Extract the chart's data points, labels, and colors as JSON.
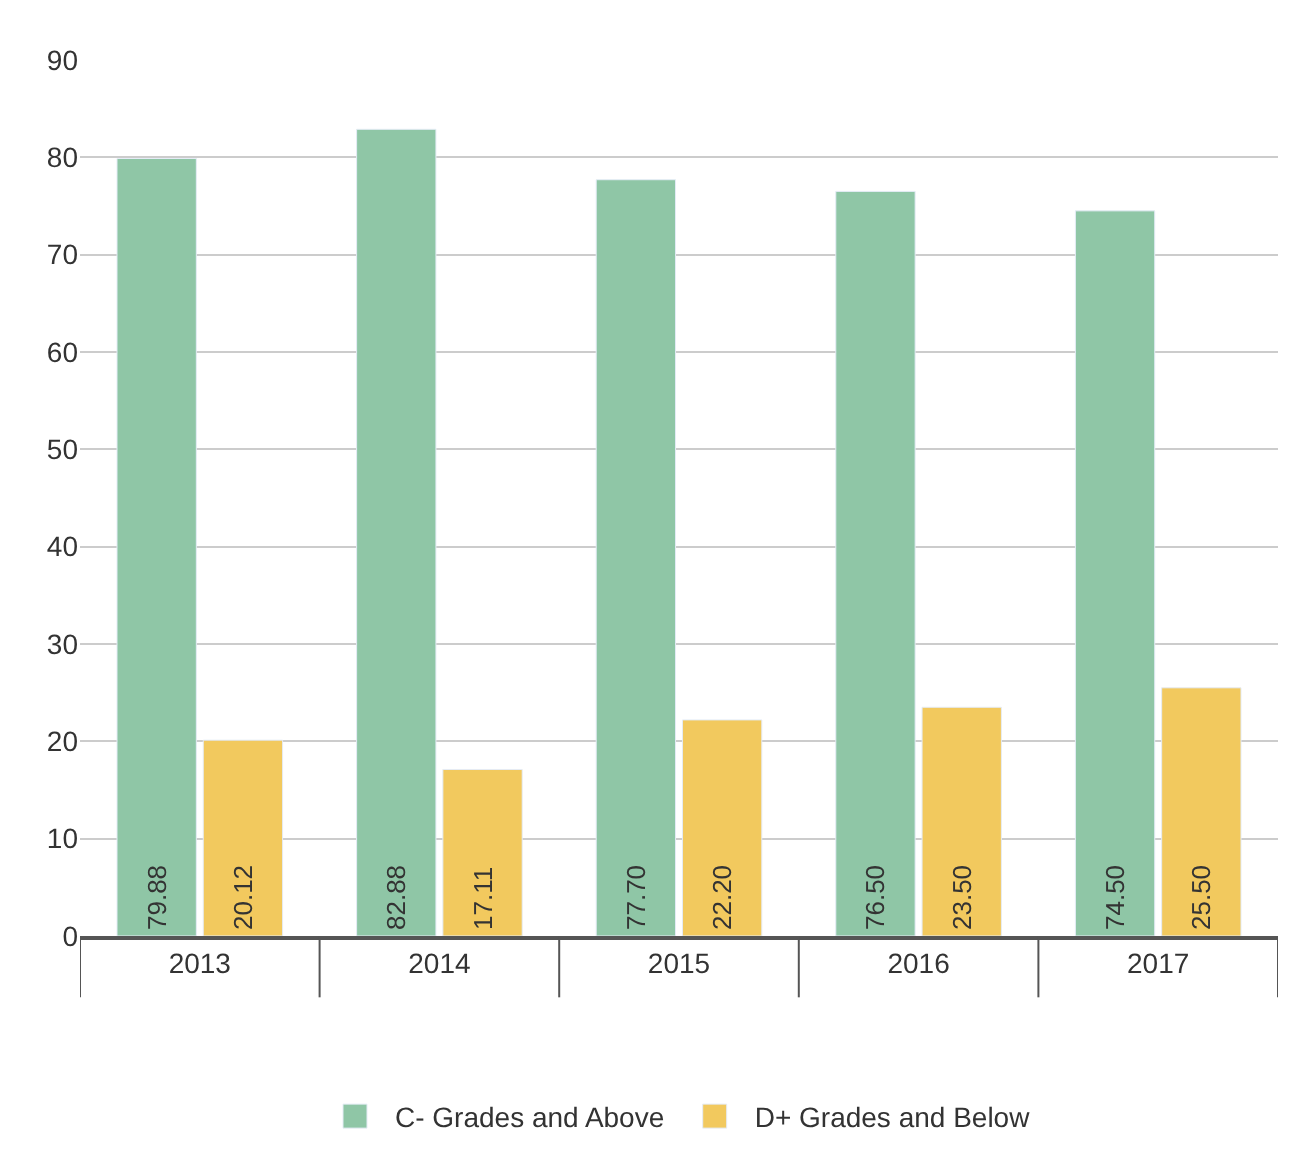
{
  "chart_data": {
    "type": "bar",
    "categories": [
      "2013",
      "2014",
      "2015",
      "2016",
      "2017"
    ],
    "series": [
      {
        "name": "C- Grades and Above",
        "color": "#8fc6a6",
        "values": [
          79.88,
          82.88,
          77.7,
          76.5,
          74.5
        ],
        "value_labels": [
          "79.88",
          "82.88",
          "77.70",
          "76.50",
          "74.50"
        ]
      },
      {
        "name": "D+ Grades and Below",
        "color": "#f2c95e",
        "values": [
          20.12,
          17.11,
          22.2,
          23.5,
          25.5
        ],
        "value_labels": [
          "20.12",
          "17.11",
          "22.20",
          "23.50",
          "25.50"
        ]
      }
    ],
    "ylim": [
      0,
      90
    ],
    "yticks": [
      0,
      10,
      20,
      30,
      40,
      50,
      60,
      70,
      80,
      90
    ],
    "grid": "y",
    "legend": "bottom"
  }
}
